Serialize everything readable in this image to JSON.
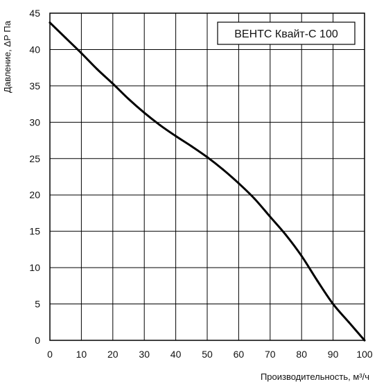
{
  "chart_data": {
    "type": "line",
    "legend": "ВЕНТС Квайт-С 100",
    "legend_position": "top-right",
    "xlabel": "Производительность, м³/ч",
    "ylabel": "Давление, ΔР Па",
    "xlim": [
      0,
      100
    ],
    "ylim": [
      0,
      45
    ],
    "grid": true,
    "x_ticks": [
      "0",
      "10",
      "20",
      "30",
      "40",
      "50",
      "60",
      "70",
      "80",
      "90",
      "100"
    ],
    "y_ticks": [
      "0",
      "5",
      "10",
      "15",
      "20",
      "25",
      "30",
      "35",
      "40",
      "45"
    ],
    "series": [
      {
        "color": "#000000",
        "x": [
          0,
          5,
          10,
          15,
          20,
          25,
          30,
          35,
          40,
          45,
          50,
          55,
          60,
          65,
          70,
          75,
          80,
          85,
          90,
          95,
          100
        ],
        "y": [
          43.7,
          41.6,
          39.5,
          37.3,
          35.3,
          33.2,
          31.3,
          29.6,
          28.1,
          26.7,
          25.2,
          23.5,
          21.6,
          19.5,
          17.0,
          14.5,
          11.6,
          8.2,
          5.0,
          2.5,
          0.0
        ]
      }
    ]
  }
}
